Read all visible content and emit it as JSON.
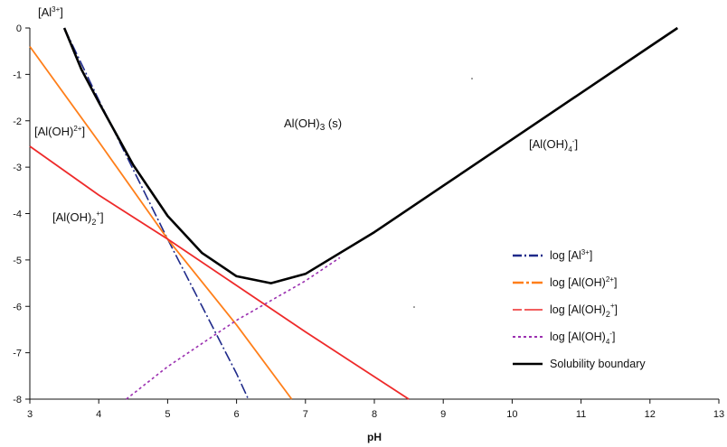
{
  "chart_data": {
    "type": "line",
    "xlabel": "pH",
    "ylabel": "",
    "xlim": [
      3,
      13
    ],
    "ylim": [
      -8,
      0
    ],
    "x_ticks": [
      "3",
      "4",
      "5",
      "6",
      "7",
      "8",
      "9",
      "10",
      "11",
      "12",
      "13"
    ],
    "y_ticks": [
      "0",
      "-1",
      "-2",
      "-3",
      "-4",
      "-5",
      "-6",
      "-7",
      "-8"
    ],
    "grid": false,
    "legend_position": "bottom-right",
    "series": [
      {
        "name": "log [Al3+]",
        "color": "#1f2a8a",
        "style": "dash-dot",
        "x": [
          3.5,
          4.0,
          4.5,
          5.0,
          5.5,
          6.0,
          6.17
        ],
        "y": [
          0.0,
          -1.55,
          -3.05,
          -4.55,
          -6.0,
          -7.45,
          -8.0
        ]
      },
      {
        "name": "log [Al(OH)2+]",
        "color": "#ff7f1a",
        "style": "solid",
        "x": [
          3.0,
          4.0,
          5.0,
          6.0,
          6.8
        ],
        "y": [
          -0.4,
          -2.45,
          -4.55,
          -6.4,
          -8.0
        ]
      },
      {
        "name": "log [Al(OH)2+]",
        "color": "#ee2a2a",
        "style": "solid",
        "x": [
          3.0,
          4.0,
          5.0,
          6.0,
          7.0,
          8.5
        ],
        "y": [
          -2.55,
          -3.6,
          -4.55,
          -5.55,
          -6.55,
          -8.0
        ]
      },
      {
        "name": "log [Al(OH)4-]",
        "color": "#9b30b0",
        "style": "dotted",
        "x": [
          4.4,
          5.0,
          6.0,
          7.0,
          7.5
        ],
        "y": [
          -8.0,
          -7.3,
          -6.3,
          -5.45,
          -4.95
        ]
      },
      {
        "name": "Solubility boundary",
        "color": "#000000",
        "style": "solid",
        "x": [
          3.5,
          3.75,
          4.0,
          4.5,
          5.0,
          5.5,
          6.0,
          6.5,
          7.0,
          8.0,
          9.0,
          10.0,
          11.0,
          12.0,
          12.4
        ],
        "y": [
          0.0,
          -0.9,
          -1.6,
          -2.95,
          -4.05,
          -4.85,
          -5.35,
          -5.5,
          -5.3,
          -4.4,
          -3.4,
          -2.4,
          -1.4,
          -0.4,
          0.0
        ]
      }
    ],
    "annotations": {
      "al3": "[Al",
      "al3_sup": "3+",
      "al3_close": "]",
      "aloh2": "[Al(OH)",
      "aloh2_sup": "2+",
      "aloh2_close": "]",
      "aloh2p": "[Al(OH)",
      "aloh2p_sub": "2",
      "aloh2p_sup": "+",
      "aloh2p_close": "]",
      "alohs": "Al(OH)",
      "alohs_sub": "3",
      "alohs_tail": " (s)",
      "aloh4": "[Al(OH)",
      "aloh4_sub": "4",
      "aloh4_sup": "-",
      "aloh4_close": "]"
    },
    "legend": {
      "l1_pre": "log [Al",
      "l1_sup": "3+",
      "l1_post": "]",
      "l2_pre": "log [Al(OH)",
      "l2_sup": "2+",
      "l2_post": "]",
      "l3_pre": "log [Al(OH)",
      "l3_sub": "2",
      "l3_sup": "+",
      "l3_post": "]",
      "l4_pre": "log [Al(OH)",
      "l4_sub": "4",
      "l4_sup": "-",
      "l4_post": "]",
      "l5": "Solubility boundary"
    }
  }
}
